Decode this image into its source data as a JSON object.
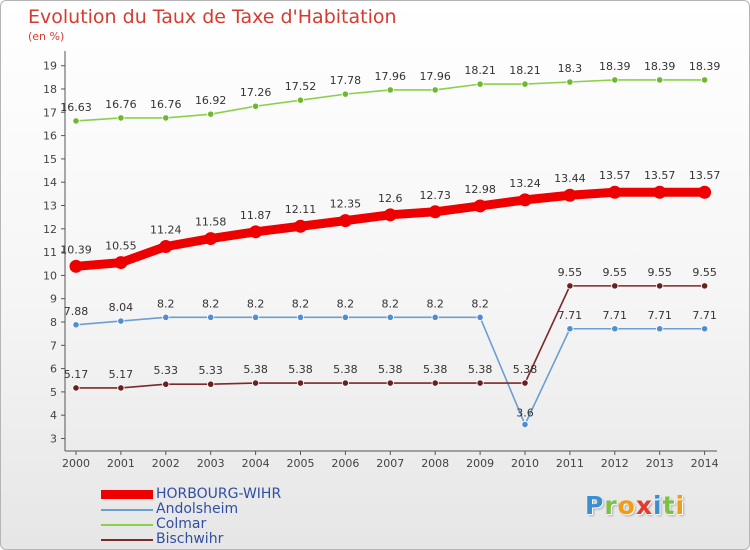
{
  "chart_data": {
    "type": "line",
    "title": "Evolution du Taux de Taxe d'Habitation",
    "unit_label": "(en %)",
    "x": [
      "2000",
      "2001",
      "2002",
      "2003",
      "2004",
      "2005",
      "2006",
      "2007",
      "2008",
      "2009",
      "2010",
      "2011",
      "2012",
      "2013",
      "2014"
    ],
    "y_ticks": [
      "3",
      "4",
      "5",
      "6",
      "7",
      "8",
      "9",
      "10",
      "11",
      "12",
      "13",
      "14",
      "15",
      "16",
      "17",
      "18",
      "19"
    ],
    "ylim": [
      3,
      19
    ],
    "grid": false,
    "legend_position": "bottom-left",
    "series": [
      {
        "name": "Colmar",
        "color": "#8bd04a",
        "point_color": "#6cb82e",
        "values": [
          16.63,
          16.76,
          16.76,
          16.92,
          17.26,
          17.52,
          17.78,
          17.96,
          17.96,
          18.21,
          18.21,
          18.3,
          18.39,
          18.39,
          18.39
        ],
        "labels": [
          "16.63",
          "16.76",
          "16.76",
          "16.92",
          "17.26",
          "17.52",
          "17.78",
          "17.96",
          "17.96",
          "18.21",
          "18.21",
          "18.3",
          "18.39",
          "18.39",
          "18.39"
        ]
      },
      {
        "name": "HORBOURG-WIHR",
        "color": "#ee0000",
        "point_color": "#ee0000",
        "values": [
          10.39,
          10.55,
          11.24,
          11.58,
          11.87,
          12.11,
          12.35,
          12.6,
          12.73,
          12.98,
          13.24,
          13.44,
          13.57,
          13.57,
          13.57
        ],
        "labels": [
          "10.39",
          "10.55",
          "11.24",
          "11.58",
          "11.87",
          "12.11",
          "12.35",
          "12.6",
          "12.73",
          "12.98",
          "13.24",
          "13.44",
          "13.57",
          "13.57",
          "13.57"
        ]
      },
      {
        "name": "Andolsheim",
        "color": "#6c9fd0",
        "point_color": "#4f8ed0",
        "values": [
          7.88,
          8.04,
          8.2,
          8.2,
          8.2,
          8.2,
          8.2,
          8.2,
          8.2,
          8.2,
          3.6,
          7.71,
          7.71,
          7.71,
          7.71
        ],
        "labels": [
          "7.88",
          "8.04",
          "8.2",
          "8.2",
          "8.2",
          "8.2",
          "8.2",
          "8.2",
          "8.2",
          "8.2",
          "3.6",
          "7.71",
          "7.71",
          "7.71",
          "7.71"
        ]
      },
      {
        "name": "Bischwihr",
        "color": "#7a2a2a",
        "point_color": "#6b1f1f",
        "values": [
          5.17,
          5.17,
          5.33,
          5.33,
          5.38,
          5.38,
          5.38,
          5.38,
          5.38,
          5.38,
          5.38,
          9.55,
          9.55,
          9.55,
          9.55
        ],
        "labels": [
          "5.17",
          "5.17",
          "5.33",
          "5.33",
          "5.38",
          "5.38",
          "5.38",
          "5.38",
          "5.38",
          "5.38",
          "5.38",
          "9.55",
          "9.55",
          "9.55",
          "9.55"
        ]
      }
    ]
  },
  "legend": [
    {
      "label": "HORBOURG-WIHR",
      "color": "#ee0000",
      "thick": true
    },
    {
      "label": "Andolsheim",
      "color": "#6c9fd0",
      "thick": false
    },
    {
      "label": "Colmar",
      "color": "#8bd04a",
      "thick": false
    },
    {
      "label": "Bischwihr",
      "color": "#7a2a2a",
      "thick": false
    }
  ],
  "logo": {
    "text": "Proxiti",
    "letters": [
      {
        "ch": "P",
        "color": "#3a8fd4"
      },
      {
        "ch": "r",
        "color": "#7cc142"
      },
      {
        "ch": "o",
        "color": "#f39c12"
      },
      {
        "ch": "x",
        "color": "#e03b2f"
      },
      {
        "ch": "i",
        "color": "#3a8fd4"
      },
      {
        "ch": "t",
        "color": "#7cc142"
      },
      {
        "ch": "i",
        "color": "#f39c12"
      }
    ]
  }
}
